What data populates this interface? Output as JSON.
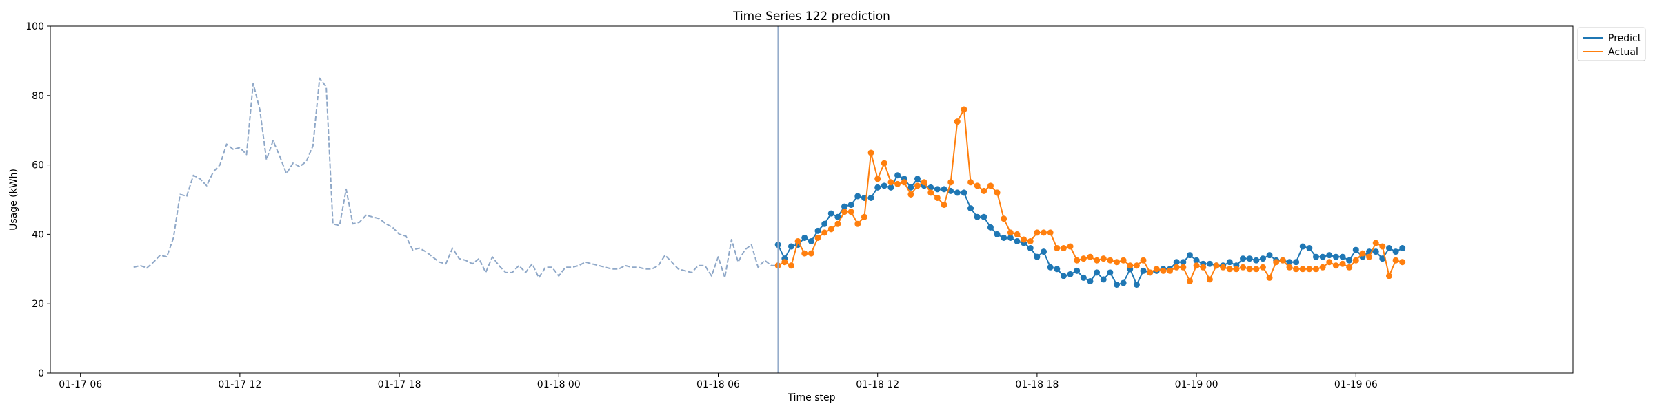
{
  "chart_data": {
    "type": "line",
    "title": "Time Series 122 prediction",
    "xlabel": "Time step",
    "ylabel": "Usage (kWh)",
    "ylim": [
      0,
      100
    ],
    "yticks": [
      0,
      20,
      40,
      60,
      80,
      100
    ],
    "xlim": [
      "2017-01-17T04:52",
      "2017-01-19T14:10"
    ],
    "xticks": [
      {
        "t": "2017-01-17T06:00",
        "label": "01-17 06"
      },
      {
        "t": "2017-01-17T12:00",
        "label": "01-17 12"
      },
      {
        "t": "2017-01-17T18:00",
        "label": "01-17 18"
      },
      {
        "t": "2017-01-18T00:00",
        "label": "01-18 00"
      },
      {
        "t": "2017-01-18T06:00",
        "label": "01-18 06"
      },
      {
        "t": "2017-01-18T12:00",
        "label": "01-18 12"
      },
      {
        "t": "2017-01-18T18:00",
        "label": "01-18 18"
      },
      {
        "t": "2017-01-19T00:00",
        "label": "01-19 00"
      },
      {
        "t": "2017-01-19T06:00",
        "label": "01-19 06"
      }
    ],
    "grid": false,
    "legend_position": "upper-right-outside",
    "forecast_start": "2017-01-18T08:15",
    "colors": {
      "history": "#8fa8c8",
      "predict": "#1f77b4",
      "actual": "#ff7f0e",
      "divider": "#8fa8c8"
    },
    "history": {
      "start": "2017-01-17T08:00",
      "step_minutes": 15,
      "style": "dashed",
      "values": [
        30.5,
        31,
        30.3,
        32,
        34,
        33.5,
        39,
        51.5,
        51,
        57,
        56,
        54,
        58,
        60,
        66,
        64.5,
        65,
        63,
        83.5,
        76,
        61.5,
        67,
        62.5,
        57.5,
        60.5,
        59.5,
        61,
        65.5,
        85,
        82.5,
        43,
        42.5,
        53,
        43,
        43.5,
        45.5,
        45,
        44.5,
        43,
        42,
        40,
        39.5,
        35.5,
        36,
        35,
        33.5,
        32,
        31.5,
        36,
        33,
        32.5,
        31.5,
        33,
        29,
        33.5,
        31,
        29,
        29,
        31,
        29,
        31.5,
        27.5,
        30.5,
        30.5,
        28,
        30.5,
        30.5,
        31,
        32,
        31.5,
        31,
        30.5,
        30,
        30,
        31,
        30.5,
        30.5,
        30,
        30,
        31,
        34,
        32,
        30,
        29.5,
        29,
        31,
        31,
        28,
        33.5,
        27.5,
        38.5,
        32,
        35.5,
        37,
        30.5,
        32.5,
        31,
        31
      ]
    },
    "series": [
      {
        "name": "Predict",
        "start": "2017-01-18T08:15",
        "step_minutes": 15,
        "marker": "circle",
        "values": [
          37,
          33,
          36.5,
          37,
          39,
          38,
          41,
          43,
          46,
          45,
          48,
          48.5,
          51,
          50.5,
          50.5,
          53.5,
          54,
          53.5,
          57,
          56,
          53.5,
          56,
          54,
          53.5,
          53,
          53,
          52.5,
          52,
          52,
          47.5,
          45,
          45,
          42,
          40,
          39,
          39,
          38,
          37.5,
          36,
          33.5,
          35,
          30.5,
          30,
          28,
          28.5,
          29.5,
          27.5,
          26.5,
          29,
          27,
          29,
          25.5,
          26,
          30,
          25.5,
          29.5,
          29,
          29.5,
          30,
          30,
          32,
          32,
          34,
          32.5,
          31.5,
          31.5,
          31,
          31,
          32,
          31,
          33,
          33,
          32.5,
          33,
          34,
          32.5,
          32.5,
          32,
          32,
          36.5,
          36,
          33.5,
          33.5,
          34,
          33.5,
          33.5,
          32.5,
          35.5,
          33.5,
          35,
          35,
          33,
          36,
          35,
          36
        ]
      },
      {
        "name": "Actual",
        "start": "2017-01-18T08:15",
        "step_minutes": 15,
        "marker": "circle",
        "values": [
          31,
          32,
          31,
          38,
          34.5,
          34.5,
          39,
          40.5,
          41.5,
          43,
          46.5,
          46.5,
          43,
          45,
          63.5,
          56,
          60.5,
          55,
          54.5,
          55,
          51.5,
          54,
          55,
          52,
          50.5,
          48.5,
          55,
          72.5,
          76,
          55,
          54,
          52.5,
          54,
          52,
          44.5,
          40.5,
          40,
          38.5,
          38,
          40.5,
          40.5,
          40.5,
          36,
          36,
          36.5,
          32.5,
          33,
          33.5,
          32.5,
          33,
          32.5,
          32,
          32.5,
          31,
          31,
          32.5,
          29,
          30,
          29.5,
          29.5,
          30.5,
          30.5,
          26.5,
          31,
          30.5,
          27,
          31,
          30.5,
          30,
          30,
          30.5,
          30,
          30,
          30.5,
          27.5,
          32,
          32.5,
          30.5,
          30,
          30,
          30,
          30,
          30.5,
          32,
          31,
          31.5,
          30.5,
          32.5,
          34.5,
          33.5,
          37.5,
          36.5,
          28,
          32.5,
          32
        ]
      }
    ]
  }
}
